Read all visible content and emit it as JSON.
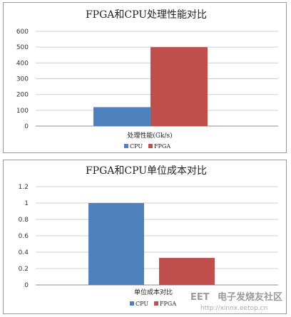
{
  "chart_data": [
    {
      "type": "bar",
      "title": "FPGA和CPU处理性能对比",
      "categories": [
        "处理性能(Gk/s)"
      ],
      "series": [
        {
          "name": "CPU",
          "values": [
            120
          ],
          "color": "#4f81bd"
        },
        {
          "name": "FPGA",
          "values": [
            500
          ],
          "color": "#c0504d"
        }
      ],
      "xlabel": "",
      "ylabel": "",
      "ylim": [
        0,
        600
      ],
      "yticks": [
        "0",
        "100",
        "200",
        "300",
        "400",
        "500",
        "600"
      ],
      "grid": true,
      "legend": "bottom"
    },
    {
      "type": "bar",
      "title": "FPGA和CPU单位成本对比",
      "categories": [
        "单位成本对比"
      ],
      "series": [
        {
          "name": "CPU",
          "values": [
            1.0
          ],
          "color": "#4f81bd"
        },
        {
          "name": "FPGA",
          "values": [
            0.33
          ],
          "color": "#c0504d"
        }
      ],
      "xlabel": "",
      "ylabel": "",
      "ylim": [
        0,
        1.2
      ],
      "yticks": [
        "0",
        "0.2",
        "0.4",
        "0.6",
        "0.8",
        "1",
        "1.2"
      ],
      "grid": true,
      "legend": "bottom"
    }
  ],
  "watermark": {
    "logo": "EET",
    "name": "电子发烧友社区",
    "url": "http://xinnx.eetop.cn"
  }
}
